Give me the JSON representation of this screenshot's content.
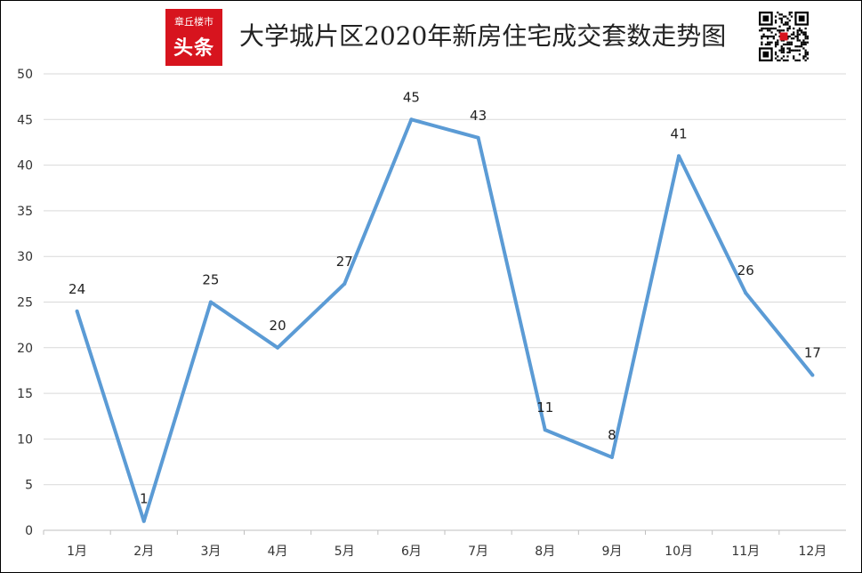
{
  "logo": {
    "line1": "章丘楼市",
    "line2": "头条",
    "color": "#d7141e"
  },
  "qr": {
    "icon": "qr-code"
  },
  "chart_data": {
    "type": "line",
    "title": "大学城片区2020年新房住宅成交套数走势图",
    "categories": [
      "1月",
      "2月",
      "3月",
      "4月",
      "5月",
      "6月",
      "7月",
      "8月",
      "9月",
      "10月",
      "11月",
      "12月"
    ],
    "values": [
      24,
      1,
      25,
      20,
      27,
      45,
      43,
      11,
      8,
      41,
      26,
      17
    ],
    "ylim": [
      0,
      50
    ],
    "yticks": [
      0,
      5,
      10,
      15,
      20,
      25,
      30,
      35,
      40,
      45,
      50
    ],
    "grid": true,
    "line_color": "#5b9bd5",
    "data_labels": true,
    "legend": "none"
  }
}
